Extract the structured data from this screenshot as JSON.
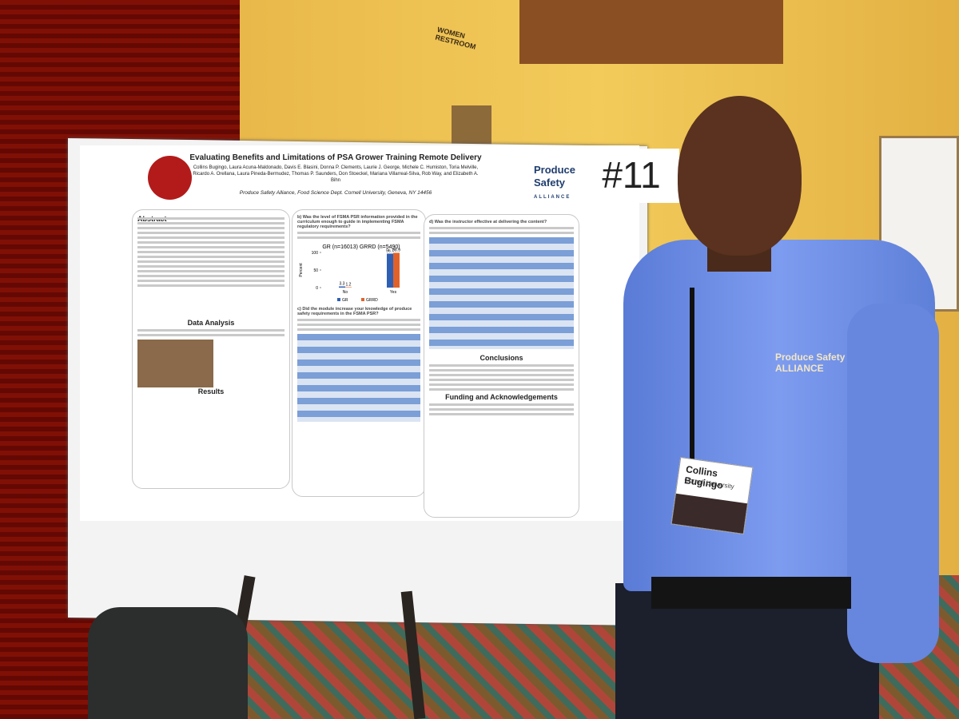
{
  "sign": {
    "restroom": "WOMEN RESTROOM",
    "number": "#11"
  },
  "poster": {
    "title": "Evaluating Benefits and Limitations of PSA Grower Training Remote Delivery",
    "authors": "Collins Bugingo, Laura Acuna-Maldonado, Davis E. Blasini, Donna P. Clements, Laurie J. George, Michele C. Humiston, Toria Melville, Ricardo A. Orellana, Laura Pineda-Bermudez, Thomas P. Saunders, Don Stoeckel, Mariana Villarreal-Silva, Rob Way, and Elizabeth A. Bihn",
    "affiliation": "Produce Safety Alliance, Food Science Dept. Cornell University, Geneva, NY 14456",
    "logo": [
      "Produce",
      "Safety",
      "ALLIANCE"
    ],
    "sections": {
      "abstract": "Abstract",
      "data_analysis": "Data Analysis",
      "results": "Results",
      "conclusions": "Conclusions",
      "funding": "Funding and Acknowledgements"
    },
    "questions": [
      "b) Was the level of FSMA PSR information provided in the curriculum enough to guide in implementing FSMA regulatory requirements?",
      "c) Did the module increase your knowledge of produce safety requirements in the FSMA PSR?",
      "d) Was the instructor effective at delivering the content?"
    ],
    "chart": {
      "title": "GR (n=16013) GRRD (n=5490)",
      "y_label": "Percent",
      "categories": [
        "No",
        "Yes"
      ],
      "series": [
        {
          "name": "GR",
          "color": "#2f5fb3",
          "values": [
            3.3,
            96.7
          ]
        },
        {
          "name": "GRRD",
          "color": "#e0622a",
          "values": [
            1.2,
            98.9
          ]
        }
      ],
      "ylim": [
        0,
        100
      ],
      "yticks": [
        0,
        50,
        100
      ]
    }
  },
  "person": {
    "badge_name": "Collins Bugingo",
    "badge_org": "Cornell University",
    "shirt": "Produce Safety ALLIANCE"
  }
}
